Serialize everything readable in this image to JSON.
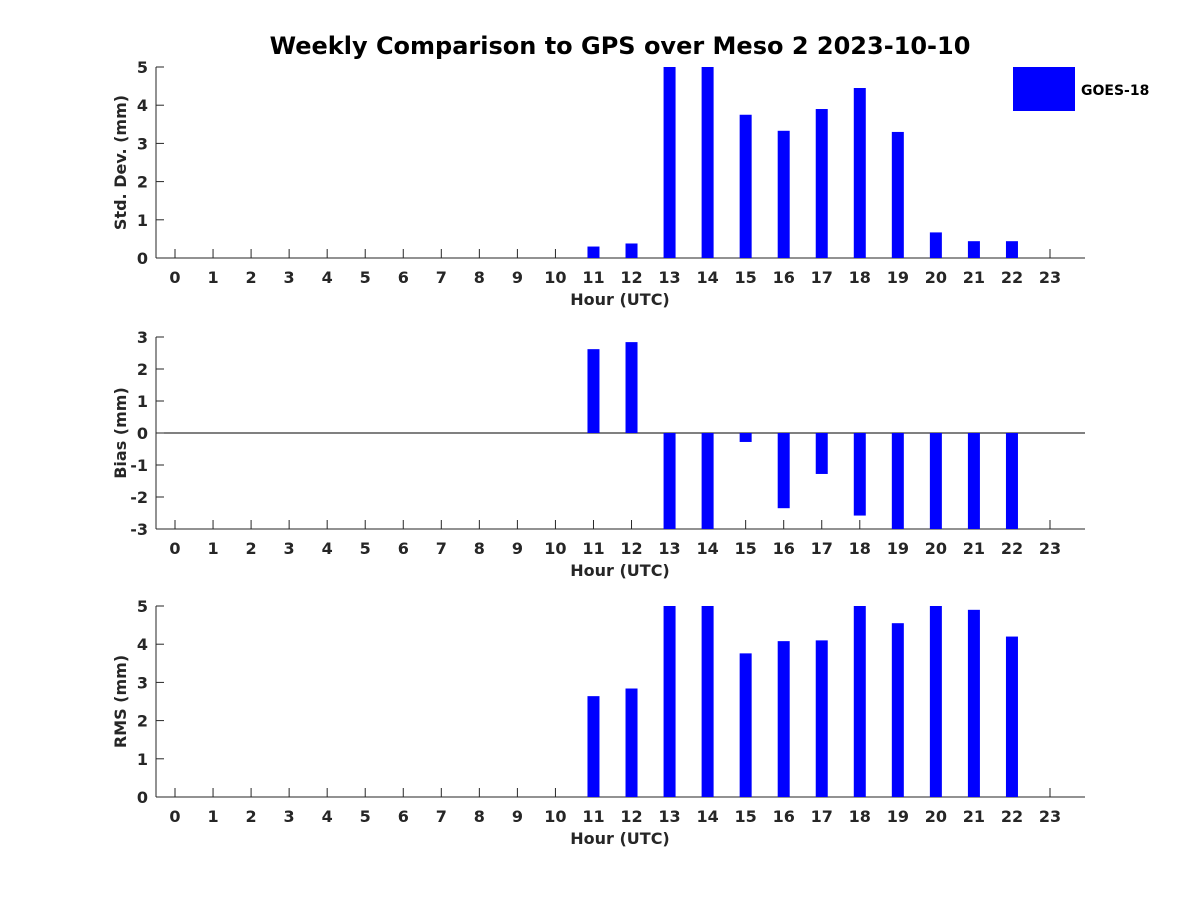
{
  "title": "Weekly Comparison to GPS over Meso 2 2023-10-10",
  "legend": {
    "label": "GOES-18",
    "color": "#0000ff",
    "placement": "top-right"
  },
  "chart_data": [
    {
      "type": "bar",
      "ylabel": "Std. Dev. (mm)",
      "xlabel": "Hour (UTC)",
      "categories": [
        "0",
        "1",
        "2",
        "3",
        "4",
        "5",
        "6",
        "7",
        "8",
        "9",
        "10",
        "11",
        "12",
        "13",
        "14",
        "15",
        "16",
        "17",
        "18",
        "19",
        "20",
        "21",
        "22",
        "23"
      ],
      "ylim": [
        0,
        5
      ],
      "yticks": [
        "0",
        "1",
        "2",
        "3",
        "4",
        "5"
      ],
      "series": [
        {
          "name": "GOES-18",
          "values": [
            null,
            null,
            null,
            null,
            null,
            null,
            null,
            null,
            null,
            null,
            null,
            0.3,
            0.38,
            5.0,
            5.0,
            3.75,
            3.33,
            3.9,
            4.45,
            3.3,
            0.67,
            0.44,
            0.44,
            null
          ]
        }
      ]
    },
    {
      "type": "bar",
      "ylabel": "Bias (mm)",
      "xlabel": "Hour (UTC)",
      "categories": [
        "0",
        "1",
        "2",
        "3",
        "4",
        "5",
        "6",
        "7",
        "8",
        "9",
        "10",
        "11",
        "12",
        "13",
        "14",
        "15",
        "16",
        "17",
        "18",
        "19",
        "20",
        "21",
        "22",
        "23"
      ],
      "ylim": [
        -3,
        3
      ],
      "yticks": [
        "-3",
        "-2",
        "-1",
        "0",
        "1",
        "2",
        "3"
      ],
      "series": [
        {
          "name": "GOES-18",
          "values": [
            null,
            null,
            null,
            null,
            null,
            null,
            null,
            null,
            null,
            null,
            null,
            2.62,
            2.84,
            -3.0,
            -3.0,
            -0.28,
            -2.35,
            -1.28,
            -2.58,
            -3.0,
            -3.0,
            -3.0,
            -3.0,
            null
          ]
        }
      ]
    },
    {
      "type": "bar",
      "ylabel": "RMS (mm)",
      "xlabel": "Hour (UTC)",
      "categories": [
        "0",
        "1",
        "2",
        "3",
        "4",
        "5",
        "6",
        "7",
        "8",
        "9",
        "10",
        "11",
        "12",
        "13",
        "14",
        "15",
        "16",
        "17",
        "18",
        "19",
        "20",
        "21",
        "22",
        "23"
      ],
      "ylim": [
        0,
        5
      ],
      "yticks": [
        "0",
        "1",
        "2",
        "3",
        "4",
        "5"
      ],
      "series": [
        {
          "name": "GOES-18",
          "values": [
            null,
            null,
            null,
            null,
            null,
            null,
            null,
            null,
            null,
            null,
            null,
            2.64,
            2.84,
            5.0,
            5.0,
            3.76,
            4.08,
            4.1,
            5.0,
            4.55,
            5.0,
            4.9,
            4.2,
            null
          ]
        }
      ]
    }
  ]
}
